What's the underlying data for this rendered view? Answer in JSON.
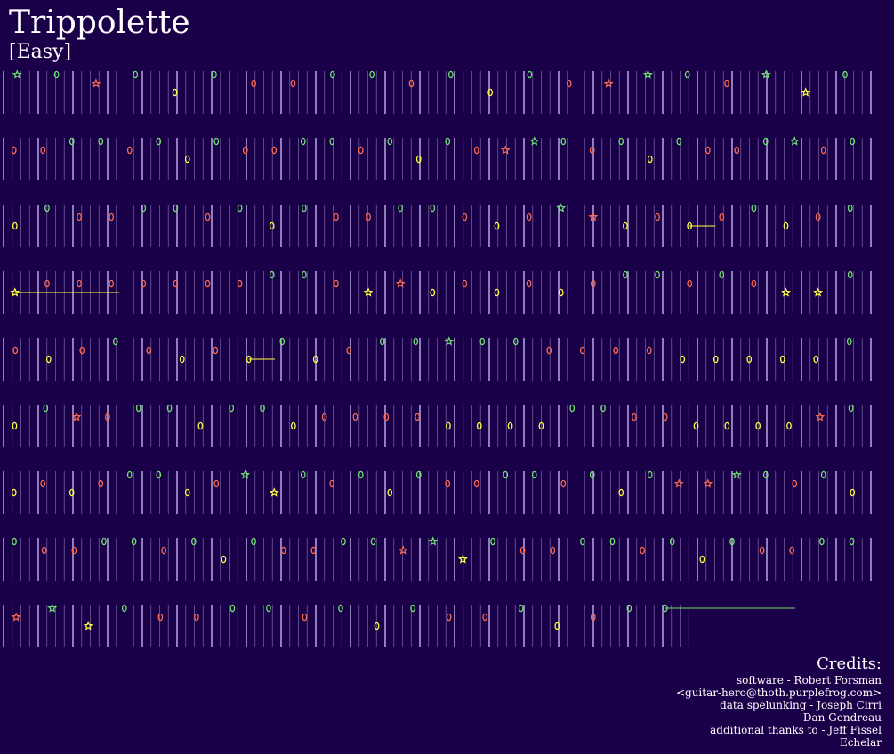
{
  "song": {
    "title": "Trippolette",
    "difficulty": "[Easy]"
  },
  "colors": {
    "background": "#1a0048",
    "green": "#6ee06e",
    "red": "#ff6a50",
    "yellow": "#ffff40",
    "beat_line": "#b4a8e0"
  },
  "note_track": {
    "rows": [
      [
        {
          "lane": "green",
          "shape": "star"
        },
        {
          "lane": "green"
        },
        {
          "lane": "red",
          "shape": "star"
        },
        {
          "lane": "green"
        },
        {
          "lane": "yellow"
        },
        {
          "lane": "green"
        },
        {
          "lane": "red"
        },
        {
          "lane": "red"
        },
        {
          "lane": "green"
        },
        {
          "lane": "green"
        },
        {
          "lane": "red"
        },
        {
          "lane": "green"
        },
        {
          "lane": "yellow"
        },
        {
          "lane": "green"
        },
        {
          "lane": "red"
        },
        {
          "lane": "red",
          "shape": "star"
        },
        {
          "lane": "green",
          "shape": "star"
        },
        {
          "lane": "green"
        },
        {
          "lane": "red"
        },
        {
          "lane": "green",
          "shape": "star"
        },
        {
          "lane": "yellow",
          "shape": "star"
        },
        {
          "lane": "green"
        }
      ],
      [
        {
          "lane": "red"
        },
        {
          "lane": "red"
        },
        {
          "lane": "green"
        },
        {
          "lane": "green"
        },
        {
          "lane": "red"
        },
        {
          "lane": "green"
        },
        {
          "lane": "yellow"
        },
        {
          "lane": "green"
        },
        {
          "lane": "red"
        },
        {
          "lane": "red"
        },
        {
          "lane": "green"
        },
        {
          "lane": "green"
        },
        {
          "lane": "red"
        },
        {
          "lane": "green"
        },
        {
          "lane": "yellow"
        },
        {
          "lane": "green"
        },
        {
          "lane": "red"
        },
        {
          "lane": "red",
          "shape": "star"
        },
        {
          "lane": "green",
          "shape": "star"
        },
        {
          "lane": "green"
        },
        {
          "lane": "red"
        },
        {
          "lane": "green"
        },
        {
          "lane": "yellow"
        },
        {
          "lane": "green"
        },
        {
          "lane": "red"
        },
        {
          "lane": "red"
        },
        {
          "lane": "green"
        },
        {
          "lane": "green",
          "shape": "star"
        },
        {
          "lane": "red"
        },
        {
          "lane": "green"
        }
      ],
      [
        {
          "lane": "yellow"
        },
        {
          "lane": "green"
        },
        {
          "lane": "red"
        },
        {
          "lane": "red"
        },
        {
          "lane": "green"
        },
        {
          "lane": "green"
        },
        {
          "lane": "red"
        },
        {
          "lane": "green"
        },
        {
          "lane": "yellow"
        },
        {
          "lane": "green"
        },
        {
          "lane": "red"
        },
        {
          "lane": "red"
        },
        {
          "lane": "green"
        },
        {
          "lane": "green"
        },
        {
          "lane": "red"
        },
        {
          "lane": "yellow"
        },
        {
          "lane": "red"
        },
        {
          "lane": "green",
          "shape": "star"
        },
        {
          "lane": "red",
          "shape": "star"
        },
        {
          "lane": "yellow"
        },
        {
          "lane": "red"
        },
        {
          "lane": "yellow",
          "sustain": 1
        },
        {
          "lane": "red"
        },
        {
          "lane": "green"
        },
        {
          "lane": "yellow"
        },
        {
          "lane": "red"
        },
        {
          "lane": "green"
        }
      ],
      [
        {
          "lane": "yellow",
          "shape": "star",
          "sustain": 4
        },
        {
          "lane": "red"
        },
        {
          "lane": "red"
        },
        {
          "lane": "red"
        },
        {
          "lane": "red"
        },
        {
          "lane": "red"
        },
        {
          "lane": "red"
        },
        {
          "lane": "red"
        },
        {
          "lane": "green"
        },
        {
          "lane": "green"
        },
        {
          "lane": "red"
        },
        {
          "lane": "yellow",
          "shape": "star"
        },
        {
          "lane": "red",
          "shape": "star"
        },
        {
          "lane": "yellow"
        },
        {
          "lane": "red"
        },
        {
          "lane": "yellow"
        },
        {
          "lane": "red"
        },
        {
          "lane": "yellow"
        },
        {
          "lane": "red"
        },
        {
          "lane": "green"
        },
        {
          "lane": "green"
        },
        {
          "lane": "red"
        },
        {
          "lane": "green"
        },
        {
          "lane": "red"
        },
        {
          "lane": "yellow",
          "shape": "star"
        },
        {
          "lane": "yellow",
          "shape": "star"
        },
        {
          "lane": "green"
        }
      ],
      [
        {
          "lane": "red"
        },
        {
          "lane": "yellow"
        },
        {
          "lane": "red"
        },
        {
          "lane": "green"
        },
        {
          "lane": "red"
        },
        {
          "lane": "yellow"
        },
        {
          "lane": "red"
        },
        {
          "lane": "yellow",
          "sustain": 1
        },
        {
          "lane": "green"
        },
        {
          "lane": "yellow"
        },
        {
          "lane": "red"
        },
        {
          "lane": "green"
        },
        {
          "lane": "green"
        },
        {
          "lane": "green",
          "shape": "star"
        },
        {
          "lane": "green"
        },
        {
          "lane": "green"
        },
        {
          "lane": "red"
        },
        {
          "lane": "red"
        },
        {
          "lane": "red"
        },
        {
          "lane": "red"
        },
        {
          "lane": "yellow"
        },
        {
          "lane": "yellow"
        },
        {
          "lane": "yellow"
        },
        {
          "lane": "yellow"
        },
        {
          "lane": "yellow"
        },
        {
          "lane": "green"
        }
      ],
      [
        {
          "lane": "yellow"
        },
        {
          "lane": "green"
        },
        {
          "lane": "red",
          "shape": "star"
        },
        {
          "lane": "red"
        },
        {
          "lane": "green"
        },
        {
          "lane": "green"
        },
        {
          "lane": "yellow"
        },
        {
          "lane": "green"
        },
        {
          "lane": "green"
        },
        {
          "lane": "yellow"
        },
        {
          "lane": "red"
        },
        {
          "lane": "red"
        },
        {
          "lane": "red"
        },
        {
          "lane": "red"
        },
        {
          "lane": "yellow"
        },
        {
          "lane": "yellow"
        },
        {
          "lane": "yellow"
        },
        {
          "lane": "yellow"
        },
        {
          "lane": "green"
        },
        {
          "lane": "green"
        },
        {
          "lane": "red"
        },
        {
          "lane": "red"
        },
        {
          "lane": "yellow"
        },
        {
          "lane": "yellow"
        },
        {
          "lane": "yellow"
        },
        {
          "lane": "yellow"
        },
        {
          "lane": "red",
          "shape": "star"
        },
        {
          "lane": "green"
        }
      ],
      [
        {
          "lane": "yellow"
        },
        {
          "lane": "red"
        },
        {
          "lane": "yellow"
        },
        {
          "lane": "red"
        },
        {
          "lane": "green"
        },
        {
          "lane": "green"
        },
        {
          "lane": "yellow"
        },
        {
          "lane": "red"
        },
        {
          "lane": "green",
          "shape": "star"
        },
        {
          "lane": "yellow",
          "shape": "star"
        },
        {
          "lane": "green"
        },
        {
          "lane": "red"
        },
        {
          "lane": "green"
        },
        {
          "lane": "yellow"
        },
        {
          "lane": "green"
        },
        {
          "lane": "red"
        },
        {
          "lane": "red"
        },
        {
          "lane": "green"
        },
        {
          "lane": "green"
        },
        {
          "lane": "red"
        },
        {
          "lane": "green"
        },
        {
          "lane": "yellow"
        },
        {
          "lane": "green"
        },
        {
          "lane": "red",
          "shape": "star"
        },
        {
          "lane": "red",
          "shape": "star"
        },
        {
          "lane": "green",
          "shape": "star"
        },
        {
          "lane": "green"
        },
        {
          "lane": "red"
        },
        {
          "lane": "green"
        },
        {
          "lane": "yellow"
        }
      ],
      [
        {
          "lane": "green"
        },
        {
          "lane": "red"
        },
        {
          "lane": "red"
        },
        {
          "lane": "green"
        },
        {
          "lane": "green"
        },
        {
          "lane": "red"
        },
        {
          "lane": "green"
        },
        {
          "lane": "yellow"
        },
        {
          "lane": "green"
        },
        {
          "lane": "red"
        },
        {
          "lane": "red"
        },
        {
          "lane": "green"
        },
        {
          "lane": "green"
        },
        {
          "lane": "red",
          "shape": "star"
        },
        {
          "lane": "green",
          "shape": "star"
        },
        {
          "lane": "yellow",
          "shape": "star"
        },
        {
          "lane": "green"
        },
        {
          "lane": "red"
        },
        {
          "lane": "red"
        },
        {
          "lane": "green"
        },
        {
          "lane": "green"
        },
        {
          "lane": "red"
        },
        {
          "lane": "green"
        },
        {
          "lane": "yellow"
        },
        {
          "lane": "green"
        },
        {
          "lane": "red"
        },
        {
          "lane": "red"
        },
        {
          "lane": "green"
        },
        {
          "lane": "green"
        }
      ],
      [
        {
          "lane": "red",
          "shape": "star"
        },
        {
          "lane": "green",
          "shape": "star"
        },
        {
          "lane": "yellow",
          "shape": "star"
        },
        {
          "lane": "green"
        },
        {
          "lane": "red"
        },
        {
          "lane": "red"
        },
        {
          "lane": "green"
        },
        {
          "lane": "green"
        },
        {
          "lane": "red"
        },
        {
          "lane": "green"
        },
        {
          "lane": "yellow"
        },
        {
          "lane": "green"
        },
        {
          "lane": "red"
        },
        {
          "lane": "red"
        },
        {
          "lane": "green"
        },
        {
          "lane": "yellow"
        },
        {
          "lane": "red"
        },
        {
          "lane": "green"
        },
        {
          "lane": "green",
          "sustain": 5
        }
      ]
    ]
  },
  "credits": {
    "heading": "Credits:",
    "lines": [
      "software - Robert Forsman",
      "<guitar-hero@thoth.purplefrog.com>",
      "data spelunking - Joseph Cirri",
      "Dan Gendreau",
      "additional thanks to - Jeff Fissel",
      "Echelar"
    ]
  }
}
